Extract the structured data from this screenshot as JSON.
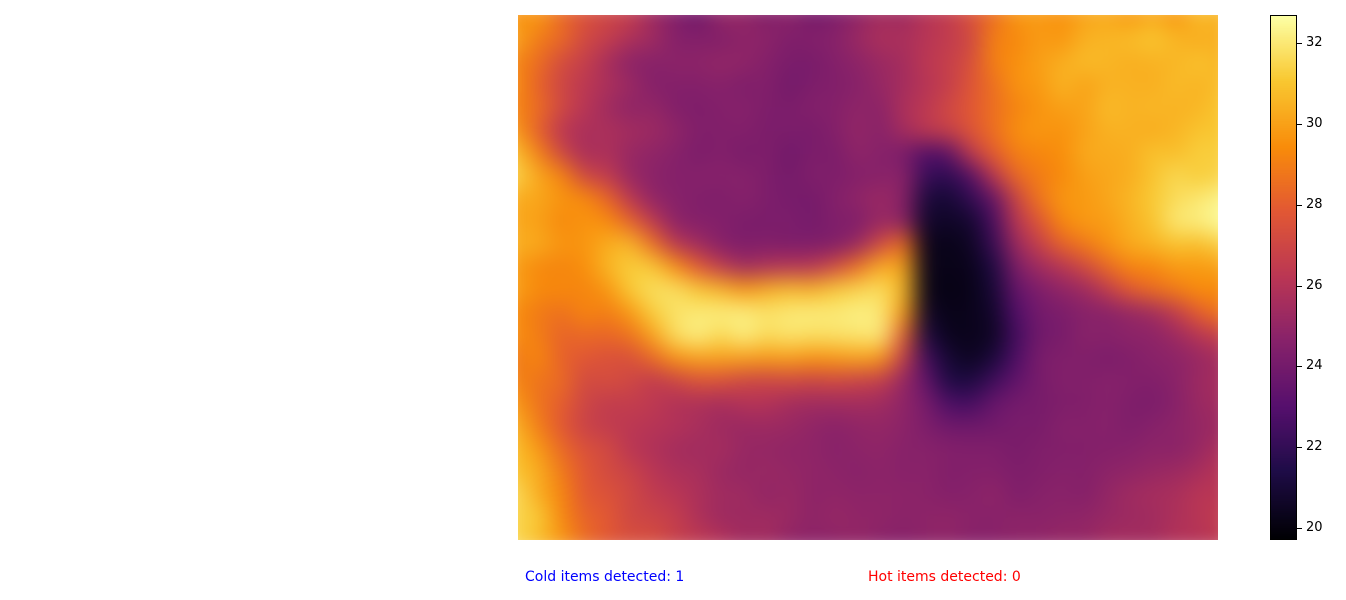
{
  "chart_data": {
    "type": "heatmap",
    "colormap": "inferno",
    "vmin": 19.7,
    "vmax": 32.7,
    "colorbar_ticks": [
      "20",
      "22",
      "24",
      "26",
      "28",
      "30",
      "32"
    ],
    "grid_shape": [
      24,
      32
    ],
    "values": [
      [
        29.6,
        29.8,
        28.4,
        27.5,
        27.0,
        26.6,
        25.3,
        24.5,
        23.8,
        25.0,
        25.0,
        24.4,
        24.8,
        24.0,
        24.3,
        24.9,
        25.5,
        25.3,
        26.1,
        26.5,
        27.5,
        28.6,
        29.8,
        29.9,
        29.6,
        30.2,
        30.3,
        29.8,
        30.4,
        29.7,
        30.8,
        30.5
      ],
      [
        30.2,
        28.9,
        28.4,
        27.1,
        26.6,
        25.8,
        25.4,
        24.5,
        24.5,
        24.4,
        24.8,
        24.8,
        24.3,
        24.5,
        24.6,
        25.2,
        25.8,
        25.7,
        26.1,
        26.5,
        27.0,
        29.1,
        29.3,
        29.9,
        29.7,
        30.5,
        30.6,
        30.8,
        31.1,
        30.6,
        30.3,
        30.5
      ],
      [
        29.2,
        28.5,
        27.2,
        26.7,
        25.6,
        24.7,
        24.6,
        24.8,
        24.8,
        25.0,
        24.9,
        24.5,
        24.2,
        24.1,
        24.5,
        24.8,
        25.2,
        25.5,
        26.3,
        26.7,
        27.4,
        29.1,
        29.6,
        30.0,
        30.4,
        30.8,
        30.6,
        30.4,
        30.5,
        30.6,
        31.0,
        30.6
      ],
      [
        29.5,
        28.1,
        27.0,
        26.3,
        25.8,
        25.3,
        24.5,
        24.5,
        24.5,
        24.6,
        24.3,
        24.5,
        23.9,
        24.3,
        24.4,
        24.6,
        25.1,
        25.5,
        26.1,
        26.6,
        27.7,
        28.6,
        29.7,
        29.8,
        30.6,
        30.0,
        30.5,
        30.5,
        30.4,
        30.8,
        30.5,
        30.9
      ],
      [
        29.2,
        28.5,
        27.1,
        26.2,
        25.4,
        24.8,
        25.0,
        24.4,
        24.3,
        24.5,
        24.6,
        24.3,
        24.2,
        24.5,
        24.5,
        24.9,
        24.7,
        25.8,
        26.3,
        27.1,
        27.8,
        28.6,
        29.2,
        29.7,
        30.0,
        30.1,
        30.8,
        30.5,
        30.7,
        30.5,
        30.6,
        31.1
      ],
      [
        29.8,
        28.0,
        26.2,
        25.7,
        25.8,
        25.5,
        25.3,
        24.9,
        24.4,
        24.4,
        24.5,
        24.2,
        24.3,
        24.1,
        24.5,
        25.0,
        24.6,
        25.5,
        26.4,
        26.8,
        27.7,
        28.6,
        29.6,
        29.8,
        29.6,
        30.1,
        30.5,
        30.5,
        30.3,
        30.6,
        31.0,
        31.1
      ],
      [
        30.9,
        29.1,
        27.0,
        25.6,
        25.8,
        25.1,
        24.9,
        24.6,
        24.2,
        24.5,
        24.1,
        24.4,
        23.8,
        24.3,
        24.2,
        24.9,
        24.6,
        24.2,
        22.8,
        23.1,
        26.4,
        28.0,
        29.1,
        29.3,
        29.5,
        30.3,
        30.3,
        30.4,
        31.0,
        30.8,
        31.3,
        31.3
      ],
      [
        31.5,
        30.2,
        29.3,
        27.0,
        26.5,
        25.1,
        24.7,
        24.5,
        24.6,
        24.6,
        24.6,
        24.3,
        24.0,
        24.4,
        24.3,
        24.5,
        24.6,
        24.8,
        22.1,
        21.8,
        22.9,
        26.2,
        28.4,
        29.0,
        29.4,
        30.0,
        30.2,
        30.4,
        31.0,
        31.6,
        31.2,
        31.5
      ],
      [
        30.3,
        30.2,
        29.7,
        29.5,
        28.3,
        26.3,
        24.9,
        24.6,
        24.4,
        24.3,
        24.6,
        24.3,
        24.1,
        24.0,
        24.5,
        24.9,
        25.3,
        24.7,
        21.1,
        20.9,
        21.9,
        23.4,
        26.9,
        28.8,
        29.8,
        29.8,
        30.2,
        30.6,
        31.2,
        31.7,
        32.0,
        32.4
      ],
      [
        30.2,
        30.0,
        29.3,
        29.7,
        29.5,
        28.2,
        26.4,
        24.7,
        24.5,
        24.5,
        24.2,
        24.2,
        24.3,
        24.0,
        24.4,
        24.3,
        25.1,
        24.8,
        20.7,
        20.6,
        20.8,
        22.6,
        26.2,
        27.7,
        29.4,
        29.9,
        29.9,
        30.5,
        31.0,
        32.1,
        32.2,
        32.7
      ],
      [
        30.5,
        30.3,
        29.7,
        29.7,
        30.4,
        30.7,
        28.6,
        26.2,
        25.4,
        24.5,
        24.3,
        24.4,
        24.2,
        24.3,
        24.3,
        25.1,
        27.1,
        28.6,
        20.3,
        20.2,
        20.5,
        22.1,
        25.3,
        26.7,
        28.2,
        28.9,
        29.7,
        30.3,
        30.6,
        31.0,
        30.8,
        31.4
      ],
      [
        29.9,
        29.3,
        29.2,
        29.5,
        30.6,
        31.3,
        31.2,
        29.6,
        27.9,
        26.5,
        25.4,
        25.9,
        26.1,
        26.1,
        27.2,
        28.6,
        30.4,
        30.2,
        20.3,
        20.2,
        20.3,
        21.3,
        24.3,
        25.4,
        26.1,
        27.1,
        28.4,
        29.3,
        29.3,
        29.9,
        29.8,
        30.1
      ],
      [
        30.1,
        29.4,
        29.4,
        29.2,
        29.7,
        31.2,
        31.8,
        31.8,
        31.1,
        30.6,
        29.8,
        30.4,
        30.8,
        30.5,
        31.2,
        31.5,
        31.8,
        30.6,
        20.2,
        20.1,
        20.2,
        21.0,
        23.5,
        24.3,
        24.9,
        25.3,
        26.5,
        27.9,
        28.5,
        29.0,
        29.5,
        29.4
      ],
      [
        29.4,
        28.9,
        28.6,
        29.3,
        29.0,
        29.8,
        31.3,
        31.9,
        32.1,
        32.2,
        32.2,
        31.9,
        32.1,
        32.2,
        32.1,
        32.3,
        32.1,
        29.9,
        20.6,
        20.2,
        20.3,
        20.7,
        22.9,
        24.0,
        24.2,
        24.6,
        24.6,
        25.0,
        25.4,
        26.5,
        28.0,
        28.9
      ],
      [
        29.6,
        29.0,
        28.2,
        28.4,
        28.3,
        28.7,
        30.1,
        31.8,
        32.3,
        31.6,
        32.3,
        31.7,
        32.0,
        31.8,
        31.9,
        32.0,
        32.2,
        28.1,
        21.3,
        20.3,
        20.3,
        20.5,
        22.5,
        23.9,
        24.1,
        24.7,
        24.6,
        24.8,
        24.8,
        25.3,
        26.1,
        26.8
      ],
      [
        28.8,
        29.4,
        28.1,
        27.8,
        27.5,
        27.4,
        28.4,
        29.7,
        30.1,
        30.1,
        30.0,
        29.9,
        30.0,
        29.7,
        29.8,
        30.1,
        29.8,
        26.7,
        22.4,
        20.9,
        20.4,
        21.1,
        22.8,
        24.2,
        24.4,
        24.4,
        24.2,
        24.4,
        24.7,
        24.8,
        25.1,
        25.6
      ],
      [
        29.2,
        28.7,
        28.5,
        27.1,
        27.4,
        27.1,
        26.4,
        26.9,
        27.6,
        27.5,
        27.0,
        26.9,
        27.1,
        26.9,
        27.1,
        26.8,
        26.6,
        25.1,
        23.4,
        21.3,
        21.2,
        22.3,
        23.4,
        24.1,
        24.5,
        24.4,
        24.6,
        24.5,
        24.4,
        24.7,
        25.3,
        25.6
      ],
      [
        29.8,
        28.7,
        28.0,
        27.0,
        26.5,
        26.6,
        26.4,
        25.9,
        25.8,
        25.6,
        26.0,
        26.0,
        25.5,
        25.4,
        25.4,
        25.5,
        25.4,
        24.9,
        24.1,
        22.7,
        22.5,
        23.6,
        24.0,
        24.1,
        24.3,
        24.4,
        24.6,
        24.3,
        24.2,
        24.6,
        25.2,
        25.5
      ],
      [
        30.5,
        29.0,
        27.8,
        26.8,
        26.5,
        26.3,
        26.1,
        26.0,
        25.7,
        25.3,
        25.2,
        25.3,
        25.2,
        24.9,
        24.7,
        24.9,
        25.0,
        24.8,
        24.3,
        23.8,
        23.8,
        23.9,
        24.2,
        24.1,
        24.6,
        24.5,
        24.6,
        24.3,
        24.6,
        24.8,
        25.0,
        25.3
      ],
      [
        30.9,
        29.8,
        28.4,
        27.5,
        27.2,
        26.2,
        25.9,
        25.5,
        25.4,
        25.6,
        25.1,
        25.0,
        24.9,
        24.9,
        24.6,
        24.8,
        24.9,
        24.6,
        24.6,
        24.5,
        24.4,
        24.4,
        24.1,
        24.4,
        24.4,
        24.5,
        24.5,
        24.6,
        24.8,
        24.7,
        25.1,
        25.8
      ],
      [
        31.0,
        30.4,
        28.9,
        27.8,
        27.2,
        26.9,
        26.2,
        25.8,
        25.7,
        25.2,
        25.0,
        25.2,
        25.0,
        24.9,
        24.8,
        24.6,
        24.8,
        24.6,
        24.7,
        24.4,
        24.5,
        24.5,
        24.3,
        24.4,
        24.6,
        24.5,
        24.8,
        24.9,
        25.1,
        25.3,
        25.6,
        26.2
      ],
      [
        31.7,
        30.3,
        29.3,
        27.8,
        27.6,
        27.1,
        26.5,
        26.2,
        25.8,
        25.4,
        25.4,
        24.9,
        25.2,
        24.8,
        24.9,
        24.8,
        24.8,
        24.8,
        24.7,
        24.5,
        24.6,
        24.9,
        24.3,
        24.6,
        24.7,
        24.5,
        25.0,
        25.4,
        25.6,
        25.7,
        26.2,
        26.2
      ],
      [
        31.5,
        31.2,
        29.3,
        28.2,
        27.9,
        27.0,
        26.9,
        26.6,
        25.8,
        25.3,
        25.3,
        25.4,
        25.2,
        24.8,
        25.1,
        24.9,
        24.9,
        24.7,
        24.8,
        24.9,
        24.7,
        24.6,
        24.8,
        24.7,
        24.8,
        24.9,
        25.1,
        25.3,
        25.4,
        25.8,
        26.1,
        26.6
      ],
      [
        31.6,
        30.8,
        29.8,
        28.5,
        27.8,
        27.4,
        27.4,
        26.7,
        26.4,
        26.0,
        25.4,
        25.5,
        24.9,
        24.8,
        24.8,
        25.0,
        24.7,
        24.6,
        24.8,
        24.9,
        24.6,
        24.7,
        24.8,
        24.9,
        25.1,
        25.0,
        25.5,
        25.5,
        25.5,
        26.0,
        26.0,
        26.4
      ]
    ]
  },
  "status": {
    "cold": "Cold items detected: 1",
    "hot": "Hot items detected: 0"
  }
}
